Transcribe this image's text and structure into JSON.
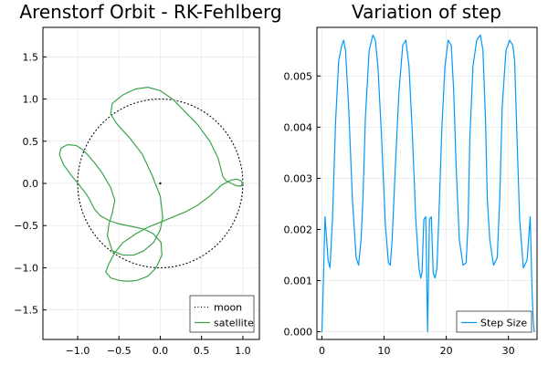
{
  "chart_data": [
    {
      "type": "line",
      "title": "Arenstorf Orbit - RK-Fehlberg",
      "xlim": [
        -1.42,
        1.2
      ],
      "ylim": [
        -1.85,
        1.85
      ],
      "xticks": [
        -1.0,
        -0.5,
        0.0,
        0.5,
        1.0
      ],
      "xtick_labels": [
        "−1.0",
        "−0.5",
        "0.0",
        "0.5",
        "1.0"
      ],
      "yticks": [
        -1.5,
        -1.0,
        -0.5,
        0.0,
        0.5,
        1.0,
        1.5
      ],
      "ytick_labels": [
        "−1.5",
        "−1.0",
        "−0.5",
        "0.0",
        "0.5",
        "1.0",
        "1.5"
      ],
      "grid": true,
      "legend_position": "bottom-right",
      "series": [
        {
          "name": "moon",
          "color": "#000000",
          "style": "dotted",
          "shape": "unit-circle",
          "x": [
            1.0,
            0.707,
            0.0,
            -0.707,
            -1.0,
            -0.707,
            0.0,
            0.707,
            1.0
          ],
          "y": [
            0.0,
            0.707,
            1.0,
            0.707,
            0.0,
            -0.707,
            -1.0,
            -0.707,
            0.0
          ]
        },
        {
          "name": "satellite",
          "color": "#3da44d",
          "style": "solid",
          "x": [
            0.994,
            0.98,
            0.93,
            0.86,
            0.8,
            0.76,
            0.74,
            0.7,
            0.6,
            0.45,
            0.3,
            0.15,
            0.0,
            -0.15,
            -0.3,
            -0.45,
            -0.55,
            -0.62,
            -0.66,
            -0.6,
            -0.5,
            -0.4,
            -0.28,
            -0.15,
            -0.05,
            0.02,
            0.01,
            -0.08,
            -0.2,
            -0.35,
            -0.5,
            -0.62,
            -0.73,
            -0.8,
            -0.85,
            -0.9,
            -0.98,
            -1.08,
            -1.17,
            -1.22,
            -1.2,
            -1.12,
            -1.02,
            -0.94,
            -0.88,
            -0.8,
            -0.7,
            -0.6,
            -0.55,
            -0.58,
            -0.62,
            -0.64,
            -0.58,
            -0.45,
            -0.32,
            -0.2,
            -0.08,
            0.0,
            0.03,
            0.0,
            -0.1,
            -0.22,
            -0.38,
            -0.52,
            -0.6,
            -0.58,
            -0.45,
            -0.3,
            -0.15,
            0.0,
            0.15,
            0.3,
            0.45,
            0.6,
            0.7,
            0.74,
            0.76,
            0.8,
            0.86,
            0.93,
            0.98,
            0.994
          ],
          "y": [
            0.0,
            0.03,
            0.05,
            0.04,
            0.01,
            -0.01,
            -0.02,
            -0.06,
            -0.15,
            -0.26,
            -0.34,
            -0.4,
            -0.46,
            -0.52,
            -0.6,
            -0.7,
            -0.82,
            -0.95,
            -1.05,
            -1.12,
            -1.15,
            -1.16,
            -1.15,
            -1.1,
            -1.0,
            -0.85,
            -0.7,
            -0.6,
            -0.54,
            -0.51,
            -0.48,
            -0.44,
            -0.38,
            -0.3,
            -0.2,
            -0.12,
            -0.02,
            0.1,
            0.22,
            0.34,
            0.42,
            0.46,
            0.45,
            0.4,
            0.34,
            0.25,
            0.12,
            -0.05,
            -0.2,
            -0.35,
            -0.48,
            -0.62,
            -0.8,
            -0.85,
            -0.85,
            -0.8,
            -0.7,
            -0.55,
            -0.4,
            -0.15,
            0.1,
            0.35,
            0.55,
            0.7,
            0.82,
            0.95,
            1.05,
            1.12,
            1.14,
            1.1,
            1.0,
            0.85,
            0.7,
            0.5,
            0.3,
            0.15,
            0.08,
            0.03,
            0.0,
            -0.03,
            -0.03,
            0.0
          ]
        }
      ]
    },
    {
      "type": "line",
      "title": "Variation of step",
      "xlim": [
        -0.8,
        34.6
      ],
      "ylim": [
        -0.00015,
        0.00595
      ],
      "xticks": [
        0,
        10,
        20,
        30
      ],
      "xtick_labels": [
        "0",
        "10",
        "20",
        "30"
      ],
      "yticks": [
        0.0,
        0.001,
        0.002,
        0.003,
        0.004,
        0.005
      ],
      "ytick_labels": [
        "0.000",
        "0.001",
        "0.002",
        "0.003",
        "0.004",
        "0.005"
      ],
      "grid": true,
      "legend_position": "bottom-right",
      "series": [
        {
          "name": "Step Size",
          "color": "#009af9",
          "style": "solid",
          "x": [
            0.0,
            0.2,
            0.5,
            1.0,
            1.3,
            1.7,
            2.2,
            2.7,
            3.2,
            3.5,
            3.8,
            4.3,
            4.9,
            5.5,
            5.9,
            6.3,
            6.6,
            7.0,
            7.6,
            8.2,
            8.6,
            9.0,
            9.6,
            10.2,
            10.7,
            11.0,
            11.3,
            11.8,
            12.4,
            13.0,
            13.5,
            14.0,
            14.5,
            15.1,
            15.6,
            15.9,
            16.1,
            16.4,
            16.7,
            17.0,
            17.3,
            17.6,
            17.9,
            18.2,
            18.5,
            18.8,
            19.3,
            19.8,
            20.3,
            20.8,
            21.2,
            21.6,
            22.1,
            22.7,
            23.2,
            23.5,
            23.8,
            24.3,
            24.9,
            25.5,
            25.9,
            26.3,
            26.6,
            27.0,
            27.6,
            28.2,
            28.6,
            29.0,
            29.6,
            30.2,
            30.7,
            31.0,
            31.3,
            31.8,
            32.4,
            33.0,
            33.5,
            33.8,
            34.0,
            34.15
          ],
          "y": [
            0.0,
            0.0008,
            0.00225,
            0.0014,
            0.00125,
            0.0022,
            0.0041,
            0.0053,
            0.0056,
            0.0057,
            0.0055,
            0.0044,
            0.0026,
            0.00145,
            0.0013,
            0.0018,
            0.0026,
            0.0042,
            0.0055,
            0.0058,
            0.0057,
            0.0052,
            0.0038,
            0.0021,
            0.00135,
            0.0013,
            0.0018,
            0.0032,
            0.0047,
            0.0056,
            0.0057,
            0.0052,
            0.004,
            0.0022,
            0.00125,
            0.00105,
            0.00115,
            0.0022,
            0.00225,
            0.0,
            0.0022,
            0.00225,
            0.00115,
            0.00105,
            0.00125,
            0.0022,
            0.004,
            0.0052,
            0.0057,
            0.0056,
            0.0047,
            0.0032,
            0.0018,
            0.0013,
            0.00135,
            0.0021,
            0.0038,
            0.0052,
            0.0057,
            0.0058,
            0.0055,
            0.0042,
            0.0026,
            0.0018,
            0.0013,
            0.00145,
            0.0026,
            0.0044,
            0.0055,
            0.0057,
            0.0056,
            0.0053,
            0.0041,
            0.0022,
            0.00125,
            0.0014,
            0.00225,
            0.0008,
            0.0002,
            0.0
          ]
        }
      ]
    }
  ],
  "center_marker": {
    "x": 0.0,
    "y": 0.0
  }
}
